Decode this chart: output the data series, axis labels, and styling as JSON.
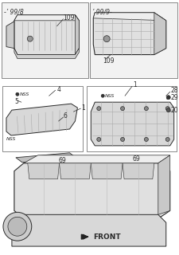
{
  "bg_color": "#ffffff",
  "line_color": "#2a2a2a",
  "gray_fill": "#e8e8e8",
  "dark_fill": "#c0c0c0",
  "box1_label": "-’ 99/8",
  "box2_label": "’ 99/9-",
  "part109": "109",
  "part4": "4",
  "part5": "5",
  "part6": "6",
  "part1_a": "1",
  "part1_b": "1",
  "part20": "20",
  "part28": "28",
  "part29": "29",
  "part69_a": "69",
  "part69_b": "69",
  "nss_a": "NSS",
  "nss_b": "NSS",
  "nss_c": "NSS",
  "front": "FRONT",
  "font_size": 5.5,
  "small_font": 4.5
}
